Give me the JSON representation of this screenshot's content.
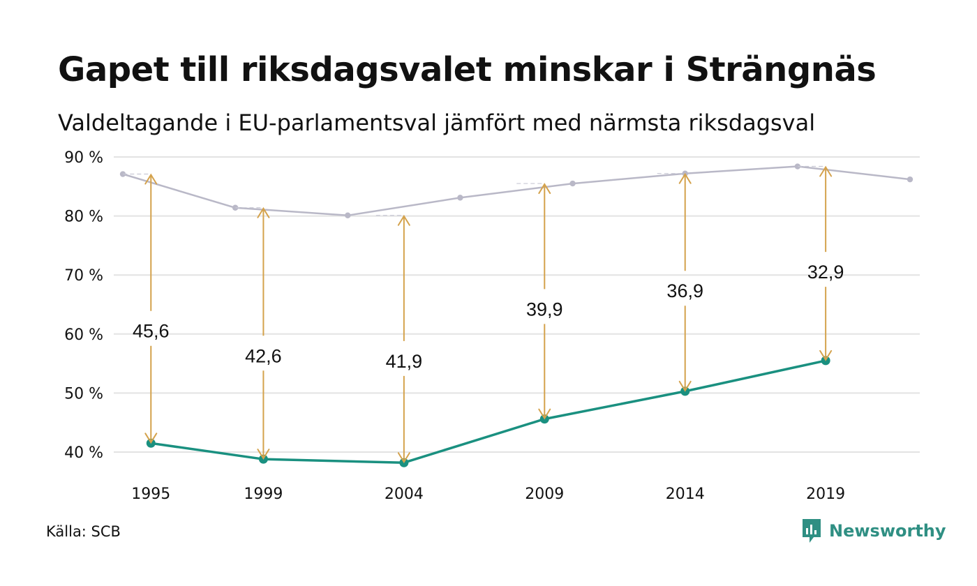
{
  "title": "Gapet till riksdagsvalet minskar i Strängnäs",
  "subtitle": "Valdeltagande i EU-parlamentsval jämfört med närmsta riksdagsval",
  "source": "Källa: SCB",
  "brand": {
    "name": "Newsworthy",
    "icon": "newsworthy-chart-logo-icon",
    "color": "#2f8f83"
  },
  "colors": {
    "eu": "#1a9080",
    "riksdag": "#b9b8c7",
    "gap": "#d4a24c",
    "grid": "#e3e3e3"
  },
  "chart_data": {
    "type": "line",
    "title": "Gapet till riksdagsvalet minskar i Strängnäs",
    "subtitle": "Valdeltagande i EU-parlamentsval jämfört med närmsta riksdagsval",
    "ylim": [
      40,
      90
    ],
    "xlim": [
      1994,
      2022
    ],
    "yticks": [
      90,
      80,
      70,
      60,
      50,
      40
    ],
    "ytick_labels": [
      "90 %",
      "80 %",
      "70 %",
      "60 %",
      "50 %",
      "40 %"
    ],
    "xticks": [
      1995,
      1999,
      2004,
      2009,
      2014,
      2019
    ],
    "xtick_labels": [
      "1995",
      "1999",
      "2004",
      "2009",
      "2014",
      "2019"
    ],
    "grid": "horizontal",
    "series": [
      {
        "id": "riksdag",
        "color": "#b9b8c7",
        "x": [
          1994,
          1998,
          2002,
          2006,
          2010,
          2014,
          2018,
          2022
        ],
        "y": [
          87.1,
          81.4,
          80.1,
          83.1,
          85.5,
          87.2,
          88.4,
          86.2
        ]
      },
      {
        "id": "eu",
        "color": "#1a9080",
        "x": [
          1995,
          1999,
          2004,
          2009,
          2014,
          2019
        ],
        "y": [
          41.5,
          38.8,
          38.2,
          45.6,
          50.3,
          55.5
        ]
      }
    ],
    "gaps": [
      {
        "year": 1995,
        "from": 41.5,
        "to": 87.1,
        "label": "45,6",
        "label_y": 60.6
      },
      {
        "year": 1999,
        "from": 38.8,
        "to": 81.4,
        "label": "42,6",
        "label_y": 56.4
      },
      {
        "year": 2004,
        "from": 38.2,
        "to": 80.1,
        "label": "41,9",
        "label_y": 55.5
      },
      {
        "year": 2009,
        "from": 45.6,
        "to": 85.5,
        "label": "39,9",
        "label_y": 64.3
      },
      {
        "year": 2014,
        "from": 50.3,
        "to": 87.2,
        "label": "36,9",
        "label_y": 67.4
      },
      {
        "year": 2019,
        "from": 55.5,
        "to": 88.4,
        "label": "32,9",
        "label_y": 70.6
      }
    ]
  }
}
